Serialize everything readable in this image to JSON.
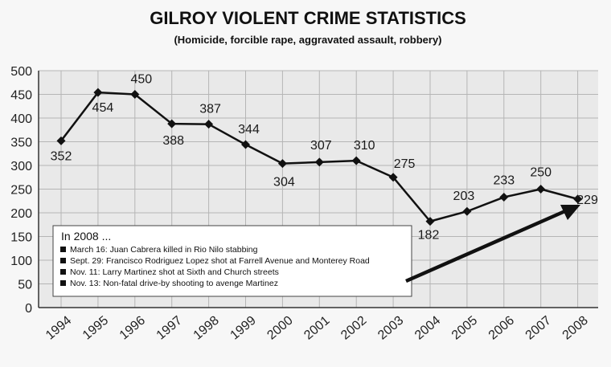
{
  "chart_data": {
    "type": "line",
    "title": "GILROY VIOLENT CRIME STATISTICS",
    "subtitle": "(Homicide, forcible rape, aggravated assault, robbery)",
    "categories": [
      "1994",
      "1995",
      "1996",
      "1997",
      "1998",
      "1999",
      "2000",
      "2001",
      "2002",
      "2003",
      "2004",
      "2005",
      "2006",
      "2007",
      "2008"
    ],
    "series": [
      {
        "values": [
          352,
          454,
          450,
          388,
          387,
          344,
          304,
          307,
          310,
          275,
          182,
          203,
          233,
          250,
          229
        ]
      }
    ],
    "ylim": [
      0,
      500
    ],
    "yticks": [
      "0",
      "50",
      "100",
      "150",
      "200",
      "250",
      "300",
      "350",
      "400",
      "450",
      "500"
    ],
    "grid": true,
    "colors": {
      "line": "#111111",
      "grid": "#b5b5b5",
      "plot_bg": "#e9e9e9",
      "page_bg": "#f7f7f7"
    }
  },
  "legend_box": {
    "heading": "In 2008 ...",
    "items": [
      "March 16: Juan Cabrera killed in Rio Nilo stabbing",
      "Sept. 29: Francisco Rodriguez Lopez shot at Farrell Avenue and Monterey Road",
      "Nov. 11: Larry Martinez shot at Sixth and Church streets",
      "Nov. 13: Non-fatal drive-by shooting to avenge Martinez"
    ]
  }
}
